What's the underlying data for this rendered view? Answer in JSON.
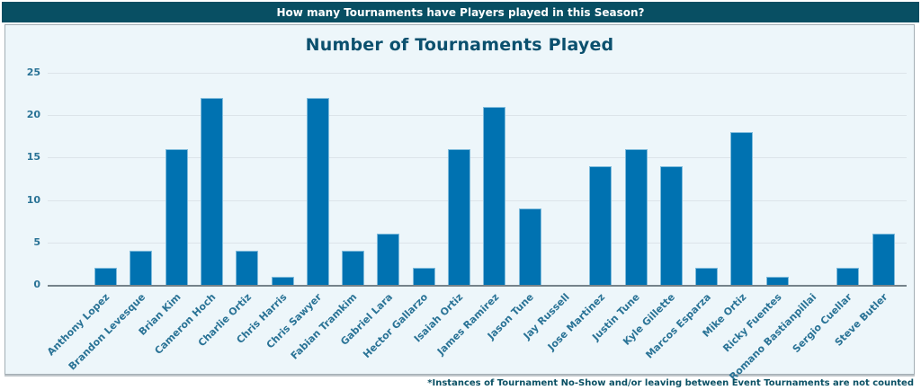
{
  "header": {
    "title": "How many Tournaments have Players played in this Season?"
  },
  "chart": {
    "title": "Number of Tournaments Played"
  },
  "footnote": {
    "text": "*Instances of Tournament No-Show and/or leaving between Event Tournaments are not counted"
  },
  "colors": {
    "header_background": "#084f63",
    "panel_background": "#edf6fa",
    "bar_fill": "#0072b1",
    "bar_edge": "#7fbcdc",
    "tick_text": "#2a7396",
    "title_text": "#0b506e",
    "gridline": "#dce4e9",
    "axis_line": "#75838a"
  },
  "chart_data": {
    "type": "bar",
    "title": "Number of Tournaments Played",
    "categories": [
      "Anthony Lopez",
      "Brandon Levesque",
      "Brian Kim",
      "Cameron Hoch",
      "Charlie Ortiz",
      "Chris Harris",
      "Chris Sawyer",
      "Fabian Tramkim",
      "Gabriel Lara",
      "Hector Gallarzo",
      "Isaiah Ortiz",
      "James Ramirez",
      "Jason Tune",
      "Jay Russell",
      "Jose Martinez",
      "Justin Tune",
      "Kyle Gillette",
      "Marcos Esparza",
      "Mike Ortiz",
      "Ricky Fuentes",
      "Romano Bastianpillai",
      "Sergio Cuellar",
      "Steve Butler"
    ],
    "values": [
      2,
      4,
      16,
      22,
      4,
      1,
      22,
      4,
      6,
      2,
      16,
      21,
      9,
      0,
      14,
      16,
      14,
      2,
      18,
      1,
      0,
      2,
      6
    ],
    "xlabel": "",
    "ylabel": "",
    "ylim": [
      0,
      25
    ],
    "yticks": [
      0,
      5,
      10,
      15,
      20,
      25
    ],
    "grid": true,
    "legend": false,
    "bar_color": "#0072b1",
    "x_label_rotation_deg": 45
  }
}
